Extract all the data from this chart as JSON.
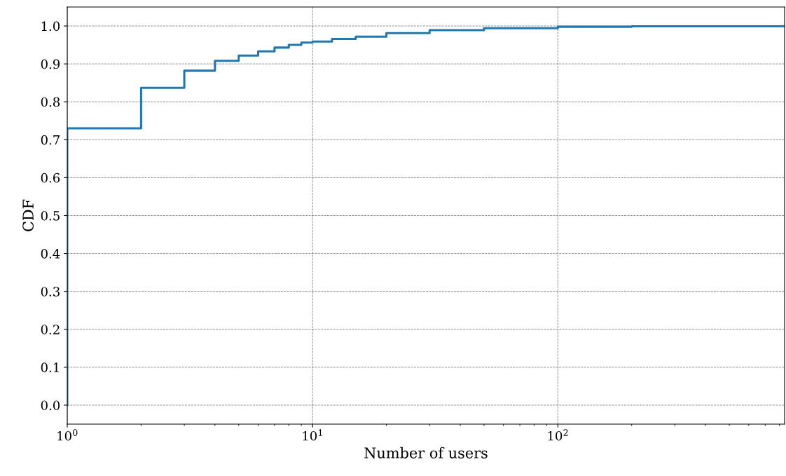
{
  "chart_data": {
    "type": "step",
    "xlabel": "Number of users",
    "ylabel": "CDF",
    "log": "x",
    "grid": true,
    "marker": "none",
    "line_style": "solid",
    "series": [
      {
        "color": "#1f77b4",
        "x": [
          1,
          1,
          2,
          3,
          4,
          5,
          6,
          7,
          8,
          9,
          10,
          12,
          15,
          20,
          30,
          50,
          100,
          200,
          840
        ],
        "values": [
          0.0,
          0.73,
          0.837,
          0.882,
          0.908,
          0.922,
          0.933,
          0.943,
          0.95,
          0.956,
          0.959,
          0.966,
          0.972,
          0.981,
          0.989,
          0.994,
          0.998,
          0.999,
          1.0
        ]
      }
    ],
    "xlim": [
      1,
      840
    ],
    "ylim": [
      -0.05,
      1.05
    ],
    "xticks": [
      {
        "value": 1,
        "label": "10$^{0}$"
      },
      {
        "value": 10,
        "label": "10$^{1}$"
      },
      {
        "value": 100,
        "label": "10$^{2}$"
      }
    ],
    "yticks": [
      {
        "value": 0,
        "label": "0.0"
      },
      {
        "value": 0.1,
        "label": "0.1"
      },
      {
        "value": 0.2,
        "label": "0.2"
      },
      {
        "value": 0.3,
        "label": "0.3"
      },
      {
        "value": 0.4,
        "label": "0.4"
      },
      {
        "value": 0.5,
        "label": "0.5"
      },
      {
        "value": 0.6,
        "label": "0.6"
      },
      {
        "value": 0.7,
        "label": "0.7"
      },
      {
        "value": 0.8,
        "label": "0.8"
      },
      {
        "value": 0.9,
        "label": "0.9"
      },
      {
        "value": 1,
        "label": "1.0"
      }
    ]
  }
}
